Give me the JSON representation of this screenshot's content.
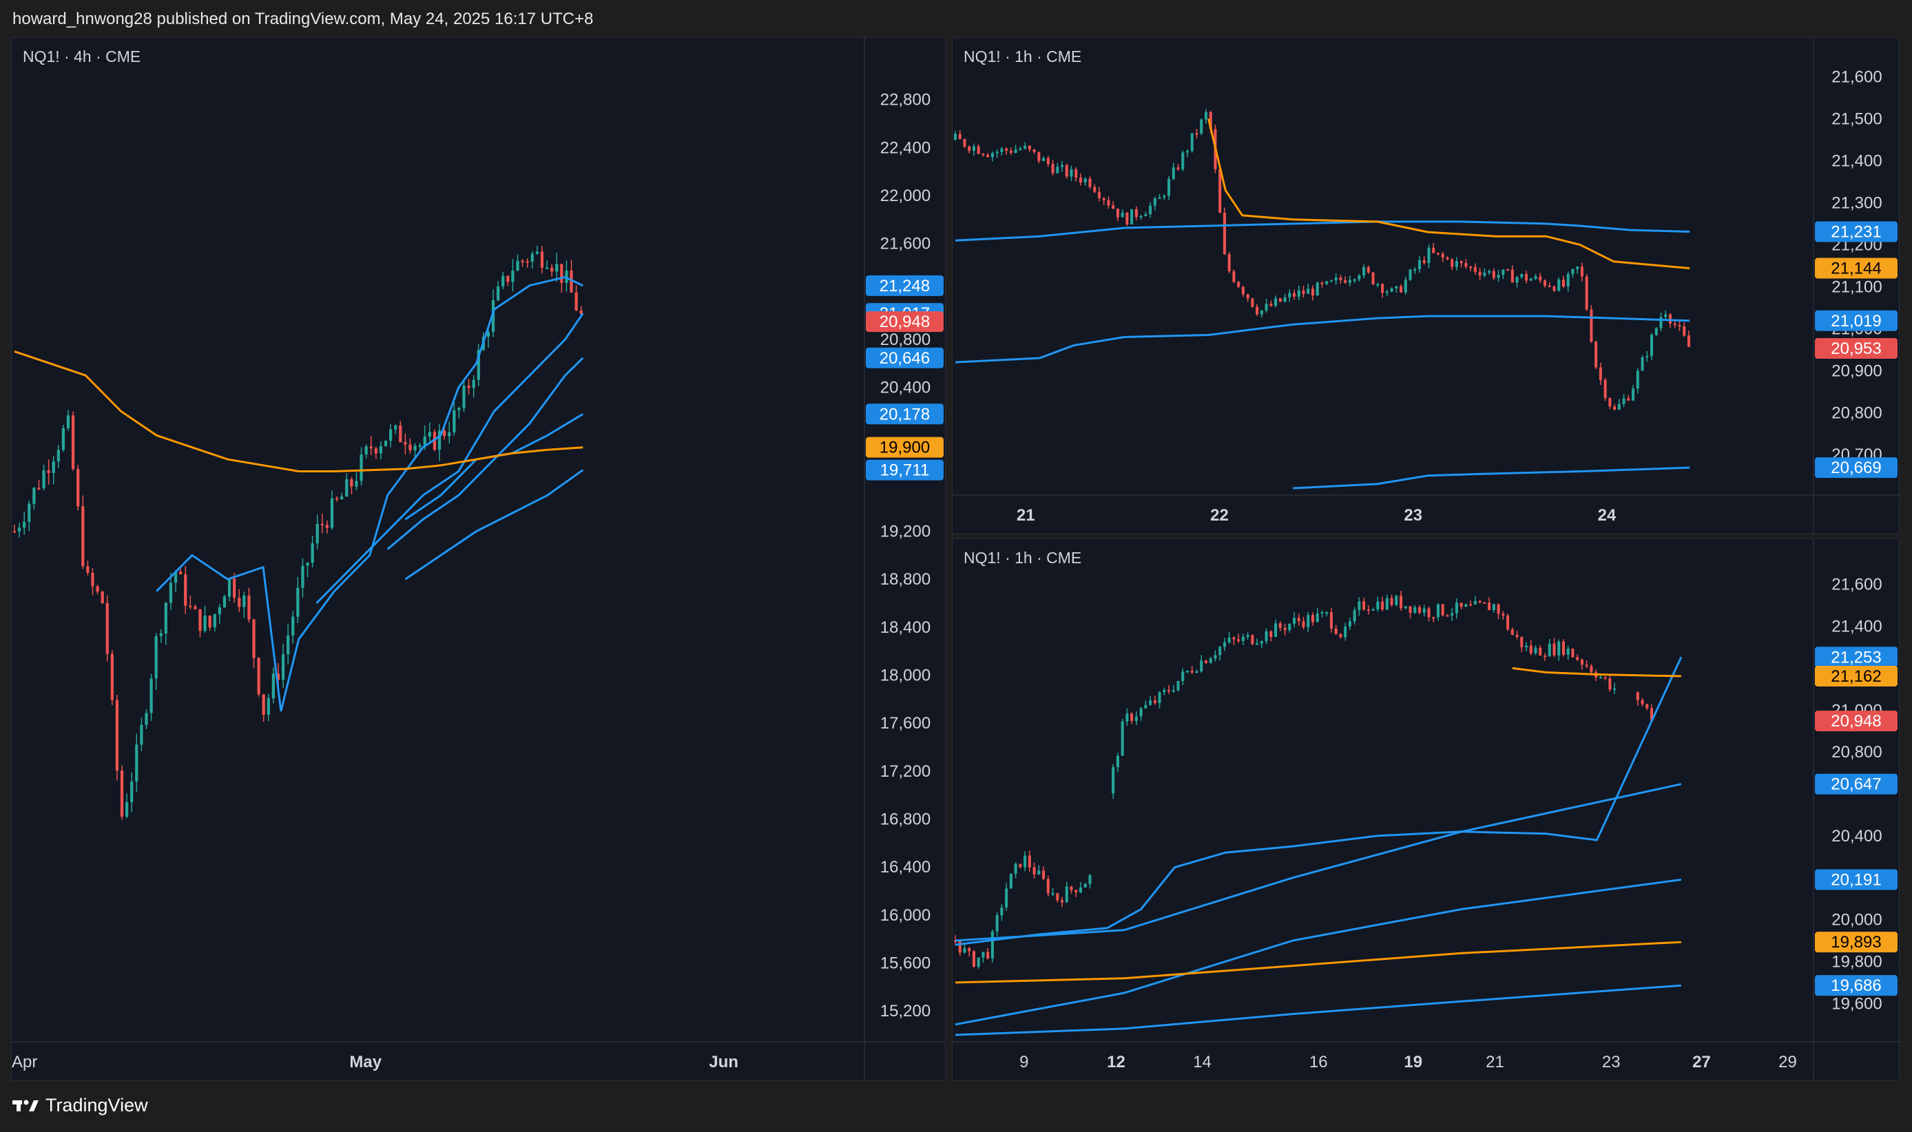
{
  "header": {
    "text": "howard_hnwong28 published on TradingView.com, May 24, 2025 16:17 UTC+8"
  },
  "footer": {
    "brand": "TradingView",
    "logo_icon": "tradingview-logo-icon"
  },
  "colors": {
    "background": "#121722",
    "up": "#26a69a",
    "down": "#ef5350",
    "ma_blue": "#2196f3",
    "ma_orange": "#ff9800",
    "label_blue": "#1e88e5",
    "label_orange": "#f7a21b",
    "label_red": "#e85050",
    "grid": "#2a2e39",
    "text": "#d1d4dc"
  },
  "chart_data": [
    {
      "type": "candlestick",
      "title": "NQ1! · 4h · CME",
      "symbol": "NQ1!",
      "interval": "4h",
      "exchange": "CME",
      "ylim": [
        15000,
        23200
      ],
      "y_ticks": [
        "22,800",
        "22,400",
        "22,000",
        "21,600",
        "20,800",
        "20,400",
        "19,200",
        "18,800",
        "18,400",
        "18,000",
        "17,600",
        "17,200",
        "16,800",
        "16,400",
        "16,000",
        "15,600",
        "15,200"
      ],
      "x_ticks": [
        {
          "label": "Apr",
          "bold": false
        },
        {
          "label": "May",
          "bold": true
        },
        {
          "label": "Jun",
          "bold": true
        }
      ],
      "price_path": [
        [
          0,
          19200
        ],
        [
          2,
          19500
        ],
        [
          4,
          19800
        ],
        [
          6,
          20100
        ],
        [
          8,
          18800
        ],
        [
          10,
          18600
        ],
        [
          12,
          16800
        ],
        [
          14,
          17400
        ],
        [
          16,
          18300
        ],
        [
          18,
          18900
        ],
        [
          20,
          18500
        ],
        [
          22,
          18400
        ],
        [
          24,
          18800
        ],
        [
          26,
          18600
        ],
        [
          28,
          17700
        ],
        [
          30,
          18100
        ],
        [
          32,
          18700
        ],
        [
          34,
          19200
        ],
        [
          36,
          19400
        ],
        [
          38,
          19600
        ],
        [
          40,
          19900
        ],
        [
          42,
          20000
        ],
        [
          44,
          20000
        ],
        [
          46,
          19900
        ],
        [
          48,
          20000
        ],
        [
          50,
          20200
        ],
        [
          52,
          20600
        ],
        [
          54,
          21100
        ],
        [
          56,
          21400
        ],
        [
          58,
          21500
        ],
        [
          60,
          21500
        ],
        [
          62,
          21300
        ],
        [
          64,
          20950
        ]
      ],
      "x_total": 96,
      "price_labels": [
        {
          "value": "21,248",
          "color": "blue"
        },
        {
          "value": "21,017",
          "color": "blue"
        },
        {
          "value": "20,948",
          "color": "red"
        },
        {
          "value": "20,646",
          "color": "blue"
        },
        {
          "value": "20,178",
          "color": "blue"
        },
        {
          "value": "19,900",
          "color": "orange"
        },
        {
          "value": "19,711",
          "color": "blue"
        }
      ],
      "series": [
        {
          "color": "blue",
          "points": [
            [
              16,
              18700
            ],
            [
              20,
              19000
            ],
            [
              24,
              18800
            ],
            [
              28,
              18900
            ],
            [
              30,
              17700
            ],
            [
              32,
              18300
            ],
            [
              36,
              18700
            ],
            [
              40,
              19000
            ],
            [
              42,
              19500
            ],
            [
              44,
              19700
            ],
            [
              46,
              19900
            ],
            [
              48,
              20000
            ],
            [
              50,
              20400
            ],
            [
              52,
              20600
            ],
            [
              54,
              21050
            ],
            [
              58,
              21250
            ],
            [
              62,
              21320
            ],
            [
              64,
              21248
            ]
          ]
        },
        {
          "color": "blue",
          "points": [
            [
              34,
              18600
            ],
            [
              38,
              18900
            ],
            [
              42,
              19200
            ],
            [
              46,
              19500
            ],
            [
              50,
              19700
            ],
            [
              54,
              20200
            ],
            [
              58,
              20500
            ],
            [
              62,
              20800
            ],
            [
              64,
              21017
            ]
          ]
        },
        {
          "color": "blue",
          "points": [
            [
              42,
              19050
            ],
            [
              46,
              19300
            ],
            [
              50,
              19500
            ],
            [
              54,
              19800
            ],
            [
              58,
              20100
            ],
            [
              62,
              20500
            ],
            [
              64,
              20646
            ]
          ]
        },
        {
          "color": "blue",
          "points": [
            [
              44,
              19300
            ],
            [
              48,
              19500
            ],
            [
              52,
              19800
            ],
            [
              56,
              19850
            ],
            [
              60,
              20000
            ],
            [
              64,
              20178
            ]
          ]
        },
        {
          "color": "orange",
          "points": [
            [
              0,
              20700
            ],
            [
              4,
              20600
            ],
            [
              8,
              20500
            ],
            [
              12,
              20200
            ],
            [
              16,
              20000
            ],
            [
              20,
              19900
            ],
            [
              24,
              19800
            ],
            [
              28,
              19750
            ],
            [
              32,
              19700
            ],
            [
              36,
              19700
            ],
            [
              40,
              19710
            ],
            [
              44,
              19720
            ],
            [
              48,
              19750
            ],
            [
              52,
              19800
            ],
            [
              56,
              19850
            ],
            [
              60,
              19880
            ],
            [
              64,
              19900
            ]
          ]
        },
        {
          "color": "blue",
          "points": [
            [
              44,
              18800
            ],
            [
              48,
              19000
            ],
            [
              52,
              19200
            ],
            [
              56,
              19350
            ],
            [
              60,
              19500
            ],
            [
              64,
              19711
            ]
          ]
        }
      ]
    },
    {
      "type": "candlestick",
      "title": "NQ1! · 1h · CME",
      "symbol": "NQ1!",
      "interval": "1h",
      "exchange": "CME",
      "ylim": [
        20620,
        21660
      ],
      "y_ticks": [
        "21,600",
        "21,500",
        "21,400",
        "21,300",
        "21,200",
        "21,100",
        "21,000",
        "20,900",
        "20,800",
        "20,700"
      ],
      "x_ticks": [
        {
          "label": "21",
          "bold": true
        },
        {
          "label": "22",
          "bold": true
        },
        {
          "label": "23",
          "bold": true
        },
        {
          "label": "24",
          "bold": true
        }
      ],
      "price_path": [
        [
          0,
          21450
        ],
        [
          4,
          21420
        ],
        [
          8,
          21430
        ],
        [
          12,
          21380
        ],
        [
          16,
          21350
        ],
        [
          20,
          21260
        ],
        [
          24,
          21300
        ],
        [
          28,
          21450
        ],
        [
          30,
          21520
        ],
        [
          32,
          21150
        ],
        [
          36,
          21040
        ],
        [
          40,
          21080
        ],
        [
          44,
          21100
        ],
        [
          48,
          21140
        ],
        [
          52,
          21080
        ],
        [
          56,
          21180
        ],
        [
          60,
          21150
        ],
        [
          64,
          21130
        ],
        [
          68,
          21120
        ],
        [
          72,
          21100
        ],
        [
          74,
          21150
        ],
        [
          76,
          20900
        ],
        [
          78,
          20800
        ],
        [
          80,
          20850
        ],
        [
          84,
          21050
        ],
        [
          87,
          20953
        ]
      ],
      "x_total": 102,
      "price_labels": [
        {
          "value": "21,231",
          "color": "blue"
        },
        {
          "value": "21,144",
          "color": "orange"
        },
        {
          "value": "21,019",
          "color": "blue"
        },
        {
          "value": "20,953",
          "color": "red"
        },
        {
          "value": "20,669",
          "color": "blue"
        }
      ],
      "series": [
        {
          "color": "blue",
          "points": [
            [
              0,
              21210
            ],
            [
              10,
              21220
            ],
            [
              20,
              21240
            ],
            [
              30,
              21245
            ],
            [
              40,
              21250
            ],
            [
              50,
              21255
            ],
            [
              60,
              21255
            ],
            [
              70,
              21250
            ],
            [
              74,
              21245
            ],
            [
              80,
              21235
            ],
            [
              87,
              21231
            ]
          ]
        },
        {
          "color": "orange",
          "points": [
            [
              30,
              21500
            ],
            [
              32,
              21330
            ],
            [
              34,
              21270
            ],
            [
              40,
              21260
            ],
            [
              50,
              21255
            ],
            [
              56,
              21230
            ],
            [
              64,
              21220
            ],
            [
              70,
              21220
            ],
            [
              74,
              21200
            ],
            [
              78,
              21160
            ],
            [
              87,
              21144
            ]
          ]
        },
        {
          "color": "blue",
          "points": [
            [
              0,
              20920
            ],
            [
              10,
              20930
            ],
            [
              14,
              20960
            ],
            [
              20,
              20980
            ],
            [
              30,
              20985
            ],
            [
              36,
              21000
            ],
            [
              40,
              21010
            ],
            [
              50,
              21025
            ],
            [
              56,
              21030
            ],
            [
              70,
              21030
            ],
            [
              87,
              21019
            ]
          ]
        },
        {
          "color": "blue",
          "points": [
            [
              40,
              20620
            ],
            [
              50,
              20630
            ],
            [
              56,
              20650
            ],
            [
              64,
              20655
            ],
            [
              74,
              20660
            ],
            [
              87,
              20669
            ]
          ]
        }
      ]
    },
    {
      "type": "candlestick",
      "title": "NQ1! · 1h · CME",
      "symbol": "NQ1!",
      "interval": "1h",
      "exchange": "CME",
      "ylim": [
        19450,
        21750
      ],
      "y_ticks": [
        "21,600",
        "21,400",
        "21,000",
        "20,800",
        "20,400",
        "20,000",
        "19,800",
        "19,600"
      ],
      "x_ticks": [
        {
          "label": "9",
          "bold": false
        },
        {
          "label": "12",
          "bold": true
        },
        {
          "label": "14",
          "bold": false
        },
        {
          "label": "16",
          "bold": false
        },
        {
          "label": "19",
          "bold": true
        },
        {
          "label": "21",
          "bold": false
        },
        {
          "label": "23",
          "bold": false
        },
        {
          "label": "27",
          "bold": true
        },
        {
          "label": "29",
          "bold": false
        }
      ],
      "price_path": [
        [
          0,
          19900
        ],
        [
          2,
          19800
        ],
        [
          4,
          19850
        ],
        [
          6,
          20150
        ],
        [
          8,
          20300
        ],
        [
          10,
          20200
        ],
        [
          12,
          20100
        ],
        [
          14,
          20150
        ],
        [
          16,
          20200
        ],
        [
          20,
          20950
        ],
        [
          22,
          21000
        ],
        [
          24,
          21050
        ],
        [
          28,
          21200
        ],
        [
          32,
          21320
        ],
        [
          36,
          21350
        ],
        [
          40,
          21420
        ],
        [
          44,
          21450
        ],
        [
          46,
          21350
        ],
        [
          48,
          21500
        ],
        [
          52,
          21520
        ],
        [
          56,
          21470
        ],
        [
          60,
          21480
        ],
        [
          64,
          21500
        ],
        [
          66,
          21360
        ],
        [
          68,
          21280
        ],
        [
          72,
          21300
        ],
        [
          76,
          21180
        ],
        [
          78,
          21080
        ],
        [
          80,
          21100
        ],
        [
          83,
          20948
        ]
      ],
      "gaps_at": [
        16,
        78
      ],
      "x_total": 102,
      "price_labels": [
        {
          "value": "21,253",
          "color": "blue"
        },
        {
          "value": "21,162",
          "color": "orange"
        },
        {
          "value": "20,948",
          "color": "red"
        },
        {
          "value": "20,647",
          "color": "blue"
        },
        {
          "value": "20,191",
          "color": "blue"
        },
        {
          "value": "19,893",
          "color": "orange"
        },
        {
          "value": "19,686",
          "color": "blue"
        }
      ],
      "series": [
        {
          "color": "blue",
          "points": [
            [
              0,
              19880
            ],
            [
              10,
              19930
            ],
            [
              18,
              19960
            ],
            [
              22,
              20050
            ],
            [
              26,
              20250
            ],
            [
              32,
              20320
            ],
            [
              40,
              20350
            ],
            [
              50,
              20400
            ],
            [
              60,
              20420
            ],
            [
              70,
              20410
            ],
            [
              76,
              20380
            ],
            [
              86,
              21253
            ]
          ]
        },
        {
          "color": "orange",
          "points": [
            [
              66,
              21200
            ],
            [
              70,
              21180
            ],
            [
              76,
              21170
            ],
            [
              86,
              21162
            ]
          ]
        },
        {
          "color": "blue",
          "points": [
            [
              0,
              19900
            ],
            [
              20,
              19950
            ],
            [
              40,
              20200
            ],
            [
              60,
              20420
            ],
            [
              86,
              20647
            ]
          ]
        },
        {
          "color": "blue",
          "points": [
            [
              0,
              19500
            ],
            [
              20,
              19650
            ],
            [
              40,
              19900
            ],
            [
              60,
              20050
            ],
            [
              86,
              20191
            ]
          ]
        },
        {
          "color": "orange",
          "points": [
            [
              0,
              19700
            ],
            [
              20,
              19720
            ],
            [
              40,
              19780
            ],
            [
              60,
              19840
            ],
            [
              86,
              19893
            ]
          ]
        },
        {
          "color": "blue",
          "points": [
            [
              0,
              19450
            ],
            [
              20,
              19480
            ],
            [
              40,
              19550
            ],
            [
              60,
              19610
            ],
            [
              86,
              19686
            ]
          ]
        }
      ]
    }
  ]
}
